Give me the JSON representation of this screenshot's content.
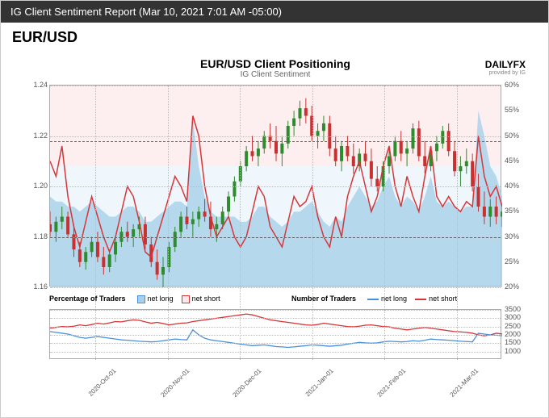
{
  "header": {
    "report_title": "IG Client Sentiment Report (Mar 10, 2021 7:01 AM -05:00)"
  },
  "pair": "EUR/USD",
  "chart": {
    "title": "EUR/USD Client Positioning",
    "subtitle": "IG Client Sentiment",
    "logo": "DAILYFX",
    "logo_sub": "provided by IG",
    "left_axis": {
      "min": 1.16,
      "max": 1.24,
      "ticks": [
        1.16,
        1.18,
        1.2,
        1.22,
        1.24
      ]
    },
    "right_axis": {
      "min": 20,
      "max": 60,
      "ticks": [
        20,
        25,
        30,
        35,
        40,
        45,
        50,
        55,
        60
      ],
      "suffix": "%"
    },
    "x_labels": [
      "2020-Oct-01",
      "2020-Nov-01",
      "2020-Dec-01",
      "2021-Jan-01",
      "2021-Feb-01",
      "2021-Mar-01"
    ],
    "x_positions_pct": [
      10,
      26,
      42,
      58,
      74,
      90
    ],
    "ref_lines_left": [
      1.18,
      1.218
    ],
    "pink_blue_split_pct": 40,
    "colors": {
      "red_line": "#d63638",
      "blue_area": "#a8d0e8",
      "blue_line": "#4a90d9",
      "pink_bg": "#fce8e8",
      "blue_bg": "#e8f4fc",
      "candle_up": "#2e8b2e",
      "candle_down": "#c93030",
      "grid": "#bbbbbb"
    },
    "red_line_pct_values": [
      45,
      42,
      48,
      38,
      32,
      28,
      33,
      38,
      34,
      30,
      27,
      30,
      35,
      40,
      38,
      33,
      27,
      26,
      30,
      34,
      38,
      42,
      40,
      37,
      54,
      50,
      40,
      34,
      30,
      32,
      34,
      30,
      28,
      30,
      35,
      40,
      38,
      32,
      30,
      28,
      33,
      38,
      36,
      37,
      40,
      34,
      30,
      28,
      34,
      30,
      38,
      42,
      45,
      40,
      35,
      38,
      44,
      48,
      40,
      36,
      42,
      38,
      35,
      42,
      48,
      38,
      36,
      38,
      36,
      35,
      37,
      36,
      50,
      42,
      38,
      40,
      36
    ],
    "blue_area_top_pct": [
      38,
      37,
      37,
      36,
      36,
      35,
      36,
      37,
      36,
      35,
      34,
      34,
      35,
      36,
      36,
      35,
      33,
      33,
      34,
      35,
      36,
      37,
      37,
      36,
      53,
      44,
      38,
      35,
      34,
      34,
      34,
      34,
      33,
      33,
      34,
      36,
      36,
      34,
      33,
      32,
      33,
      35,
      35,
      36,
      37,
      35,
      33,
      32,
      34,
      33,
      36,
      38,
      40,
      38,
      36,
      37,
      40,
      42,
      38,
      36,
      38,
      37,
      35,
      38,
      42,
      37,
      36,
      37,
      36,
      35,
      36,
      36,
      55,
      50,
      44,
      42,
      38
    ],
    "candles": [
      {
        "x": 0,
        "o": 1.185,
        "h": 1.19,
        "l": 1.18,
        "c": 1.182
      },
      {
        "x": 1,
        "o": 1.182,
        "h": 1.188,
        "l": 1.178,
        "c": 1.186
      },
      {
        "x": 2,
        "o": 1.186,
        "h": 1.192,
        "l": 1.183,
        "c": 1.188
      },
      {
        "x": 3,
        "o": 1.188,
        "h": 1.19,
        "l": 1.18,
        "c": 1.181
      },
      {
        "x": 4,
        "o": 1.181,
        "h": 1.185,
        "l": 1.172,
        "c": 1.175
      },
      {
        "x": 5,
        "o": 1.175,
        "h": 1.178,
        "l": 1.168,
        "c": 1.17
      },
      {
        "x": 6,
        "o": 1.17,
        "h": 1.176,
        "l": 1.167,
        "c": 1.174
      },
      {
        "x": 7,
        "o": 1.174,
        "h": 1.18,
        "l": 1.172,
        "c": 1.178
      },
      {
        "x": 8,
        "o": 1.178,
        "h": 1.182,
        "l": 1.17,
        "c": 1.172
      },
      {
        "x": 9,
        "o": 1.172,
        "h": 1.176,
        "l": 1.165,
        "c": 1.168
      },
      {
        "x": 10,
        "o": 1.168,
        "h": 1.175,
        "l": 1.166,
        "c": 1.173
      },
      {
        "x": 11,
        "o": 1.173,
        "h": 1.18,
        "l": 1.17,
        "c": 1.178
      },
      {
        "x": 12,
        "o": 1.178,
        "h": 1.184,
        "l": 1.176,
        "c": 1.182
      },
      {
        "x": 13,
        "o": 1.182,
        "h": 1.186,
        "l": 1.178,
        "c": 1.18
      },
      {
        "x": 14,
        "o": 1.18,
        "h": 1.185,
        "l": 1.176,
        "c": 1.183
      },
      {
        "x": 15,
        "o": 1.183,
        "h": 1.188,
        "l": 1.18,
        "c": 1.185
      },
      {
        "x": 16,
        "o": 1.185,
        "h": 1.188,
        "l": 1.175,
        "c": 1.177
      },
      {
        "x": 17,
        "o": 1.177,
        "h": 1.18,
        "l": 1.168,
        "c": 1.17
      },
      {
        "x": 18,
        "o": 1.17,
        "h": 1.175,
        "l": 1.163,
        "c": 1.165
      },
      {
        "x": 19,
        "o": 1.165,
        "h": 1.172,
        "l": 1.16,
        "c": 1.168
      },
      {
        "x": 20,
        "o": 1.168,
        "h": 1.178,
        "l": 1.166,
        "c": 1.176
      },
      {
        "x": 21,
        "o": 1.176,
        "h": 1.184,
        "l": 1.174,
        "c": 1.182
      },
      {
        "x": 22,
        "o": 1.182,
        "h": 1.19,
        "l": 1.18,
        "c": 1.188
      },
      {
        "x": 23,
        "o": 1.188,
        "h": 1.192,
        "l": 1.183,
        "c": 1.185
      },
      {
        "x": 24,
        "o": 1.185,
        "h": 1.19,
        "l": 1.18,
        "c": 1.187
      },
      {
        "x": 25,
        "o": 1.187,
        "h": 1.192,
        "l": 1.184,
        "c": 1.19
      },
      {
        "x": 26,
        "o": 1.19,
        "h": 1.195,
        "l": 1.186,
        "c": 1.188
      },
      {
        "x": 27,
        "o": 1.188,
        "h": 1.194,
        "l": 1.18,
        "c": 1.183
      },
      {
        "x": 28,
        "o": 1.183,
        "h": 1.188,
        "l": 1.178,
        "c": 1.185
      },
      {
        "x": 29,
        "o": 1.185,
        "h": 1.192,
        "l": 1.183,
        "c": 1.19
      },
      {
        "x": 30,
        "o": 1.19,
        "h": 1.198,
        "l": 1.188,
        "c": 1.196
      },
      {
        "x": 31,
        "o": 1.196,
        "h": 1.204,
        "l": 1.194,
        "c": 1.202
      },
      {
        "x": 32,
        "o": 1.202,
        "h": 1.21,
        "l": 1.2,
        "c": 1.208
      },
      {
        "x": 33,
        "o": 1.208,
        "h": 1.216,
        "l": 1.206,
        "c": 1.214
      },
      {
        "x": 34,
        "o": 1.214,
        "h": 1.22,
        "l": 1.21,
        "c": 1.212
      },
      {
        "x": 35,
        "o": 1.212,
        "h": 1.218,
        "l": 1.208,
        "c": 1.215
      },
      {
        "x": 36,
        "o": 1.215,
        "h": 1.222,
        "l": 1.213,
        "c": 1.22
      },
      {
        "x": 37,
        "o": 1.22,
        "h": 1.225,
        "l": 1.215,
        "c": 1.218
      },
      {
        "x": 38,
        "o": 1.218,
        "h": 1.224,
        "l": 1.21,
        "c": 1.213
      },
      {
        "x": 39,
        "o": 1.213,
        "h": 1.22,
        "l": 1.208,
        "c": 1.217
      },
      {
        "x": 40,
        "o": 1.217,
        "h": 1.226,
        "l": 1.215,
        "c": 1.224
      },
      {
        "x": 41,
        "o": 1.224,
        "h": 1.23,
        "l": 1.22,
        "c": 1.227
      },
      {
        "x": 42,
        "o": 1.227,
        "h": 1.234,
        "l": 1.224,
        "c": 1.231
      },
      {
        "x": 43,
        "o": 1.231,
        "h": 1.235,
        "l": 1.225,
        "c": 1.228
      },
      {
        "x": 44,
        "o": 1.228,
        "h": 1.232,
        "l": 1.218,
        "c": 1.22
      },
      {
        "x": 45,
        "o": 1.22,
        "h": 1.225,
        "l": 1.215,
        "c": 1.222
      },
      {
        "x": 46,
        "o": 1.222,
        "h": 1.228,
        "l": 1.218,
        "c": 1.225
      },
      {
        "x": 47,
        "o": 1.225,
        "h": 1.228,
        "l": 1.212,
        "c": 1.215
      },
      {
        "x": 48,
        "o": 1.215,
        "h": 1.22,
        "l": 1.208,
        "c": 1.21
      },
      {
        "x": 49,
        "o": 1.21,
        "h": 1.218,
        "l": 1.206,
        "c": 1.216
      },
      {
        "x": 50,
        "o": 1.216,
        "h": 1.22,
        "l": 1.21,
        "c": 1.212
      },
      {
        "x": 51,
        "o": 1.212,
        "h": 1.217,
        "l": 1.205,
        "c": 1.208
      },
      {
        "x": 52,
        "o": 1.208,
        "h": 1.215,
        "l": 1.206,
        "c": 1.213
      },
      {
        "x": 53,
        "o": 1.213,
        "h": 1.218,
        "l": 1.208,
        "c": 1.21
      },
      {
        "x": 54,
        "o": 1.21,
        "h": 1.215,
        "l": 1.2,
        "c": 1.203
      },
      {
        "x": 55,
        "o": 1.203,
        "h": 1.208,
        "l": 1.198,
        "c": 1.2
      },
      {
        "x": 56,
        "o": 1.2,
        "h": 1.21,
        "l": 1.198,
        "c": 1.208
      },
      {
        "x": 57,
        "o": 1.208,
        "h": 1.215,
        "l": 1.205,
        "c": 1.212
      },
      {
        "x": 58,
        "o": 1.212,
        "h": 1.22,
        "l": 1.21,
        "c": 1.218
      },
      {
        "x": 59,
        "o": 1.218,
        "h": 1.222,
        "l": 1.21,
        "c": 1.213
      },
      {
        "x": 60,
        "o": 1.213,
        "h": 1.218,
        "l": 1.208,
        "c": 1.215
      },
      {
        "x": 61,
        "o": 1.215,
        "h": 1.225,
        "l": 1.213,
        "c": 1.223
      },
      {
        "x": 62,
        "o": 1.223,
        "h": 1.226,
        "l": 1.21,
        "c": 1.212
      },
      {
        "x": 63,
        "o": 1.212,
        "h": 1.218,
        "l": 1.205,
        "c": 1.208
      },
      {
        "x": 64,
        "o": 1.208,
        "h": 1.216,
        "l": 1.206,
        "c": 1.214
      },
      {
        "x": 65,
        "o": 1.214,
        "h": 1.22,
        "l": 1.21,
        "c": 1.217
      },
      {
        "x": 66,
        "o": 1.217,
        "h": 1.224,
        "l": 1.215,
        "c": 1.222
      },
      {
        "x": 67,
        "o": 1.222,
        "h": 1.225,
        "l": 1.212,
        "c": 1.214
      },
      {
        "x": 68,
        "o": 1.214,
        "h": 1.218,
        "l": 1.204,
        "c": 1.206
      },
      {
        "x": 69,
        "o": 1.206,
        "h": 1.212,
        "l": 1.2,
        "c": 1.208
      },
      {
        "x": 70,
        "o": 1.208,
        "h": 1.215,
        "l": 1.205,
        "c": 1.21
      },
      {
        "x": 71,
        "o": 1.21,
        "h": 1.213,
        "l": 1.198,
        "c": 1.2
      },
      {
        "x": 72,
        "o": 1.2,
        "h": 1.205,
        "l": 1.19,
        "c": 1.192
      },
      {
        "x": 73,
        "o": 1.192,
        "h": 1.198,
        "l": 1.185,
        "c": 1.188
      },
      {
        "x": 74,
        "o": 1.188,
        "h": 1.195,
        "l": 1.184,
        "c": 1.192
      },
      {
        "x": 75,
        "o": 1.192,
        "h": 1.196,
        "l": 1.185,
        "c": 1.188
      },
      {
        "x": 76,
        "o": 1.188,
        "h": 1.193,
        "l": 1.184,
        "c": 1.19
      }
    ]
  },
  "legend1": {
    "title": "Percentage of Traders",
    "items": [
      {
        "label": "net long",
        "type": "box",
        "fill": "#a8d0e8",
        "border": "#4a90d9"
      },
      {
        "label": "net short",
        "type": "box",
        "fill": "#fce8e8",
        "border": "#d63638"
      }
    ]
  },
  "legend2": {
    "title": "Number of Traders",
    "items": [
      {
        "label": "net long",
        "type": "line",
        "color": "#4a90d9"
      },
      {
        "label": "net short",
        "type": "line",
        "color": "#d63638"
      }
    ]
  },
  "lower_chart": {
    "right_axis": {
      "min": 500,
      "max": 3500,
      "ticks": [
        1000,
        1500,
        2000,
        2500,
        3000,
        3500
      ]
    },
    "red_values": [
      2400,
      2450,
      2500,
      2480,
      2520,
      2600,
      2550,
      2620,
      2700,
      2650,
      2720,
      2800,
      2780,
      2850,
      2900,
      2870,
      2780,
      2700,
      2750,
      2680,
      2600,
      2650,
      2700,
      2720,
      2800,
      2850,
      2900,
      2950,
      3000,
      3050,
      3100,
      3150,
      3200,
      3250,
      3200,
      3100,
      3000,
      2900,
      2850,
      2800,
      2750,
      2700,
      2650,
      2600,
      2580,
      2620,
      2700,
      2650,
      2600,
      2550,
      2500,
      2480,
      2520,
      2580,
      2600,
      2550,
      2500,
      2480,
      2400,
      2350,
      2300,
      2350,
      2400,
      2450,
      2400,
      2350,
      2300,
      2250,
      2200,
      2180,
      2150,
      2100,
      2000,
      1950,
      2000,
      2100,
      2050
    ],
    "blue_values": [
      2200,
      2150,
      2100,
      2050,
      1950,
      1850,
      1800,
      1850,
      1900,
      1850,
      1800,
      1750,
      1700,
      1680,
      1650,
      1620,
      1600,
      1580,
      1600,
      1650,
      1700,
      1750,
      1720,
      1700,
      2300,
      2000,
      1800,
      1700,
      1650,
      1600,
      1550,
      1500,
      1450,
      1400,
      1350,
      1380,
      1400,
      1350,
      1300,
      1280,
      1250,
      1280,
      1320,
      1350,
      1400,
      1380,
      1350,
      1320,
      1350,
      1380,
      1450,
      1500,
      1550,
      1520,
      1500,
      1520,
      1580,
      1620,
      1600,
      1580,
      1600,
      1650,
      1620,
      1680,
      1750,
      1720,
      1700,
      1680,
      1650,
      1620,
      1600,
      1580,
      2100,
      2050,
      2000,
      1980,
      1950
    ]
  }
}
